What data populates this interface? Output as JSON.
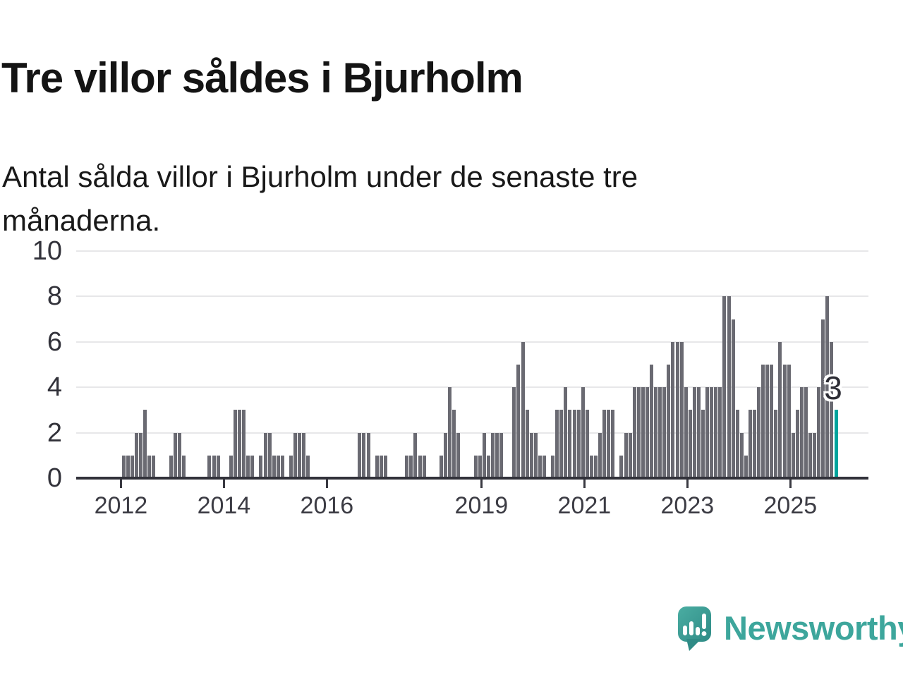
{
  "title": "Tre villor såldes i Bjurholm",
  "subtitle": "Antal sålda villor i Bjurholm under de senaste tre månaderna.",
  "annotation": {
    "label": "3"
  },
  "logo": {
    "text": "Newsworthy"
  },
  "colors": {
    "bar": "#6a6a72",
    "highlight": "#00a49c",
    "axis": "#32323a",
    "grid": "#e7e7e9",
    "logo": "#3da69c"
  },
  "chart_data": {
    "type": "bar",
    "title": "Tre villor såldes i Bjurholm",
    "subtitle": "Antal sålda villor i Bjurholm under de senaste tre månaderna.",
    "xlabel": "",
    "ylabel": "",
    "unit": "sålda villor per 3 månader",
    "start_month": "2012-01",
    "end_month": "2025-11",
    "x_tick_labels": [
      "2012",
      "2014",
      "2016",
      "2019",
      "2021",
      "2023",
      "2025"
    ],
    "yticks": [
      0,
      2,
      4,
      6,
      8,
      10
    ],
    "ylim": [
      0,
      10
    ],
    "grid": true,
    "legend": false,
    "highlight_last_value": 3,
    "values": [
      1,
      1,
      1,
      2,
      2,
      3,
      1,
      1,
      0,
      0,
      0,
      1,
      2,
      2,
      1,
      0,
      0,
      0,
      0,
      0,
      1,
      1,
      1,
      0,
      0,
      1,
      3,
      3,
      3,
      1,
      1,
      0,
      1,
      2,
      2,
      1,
      1,
      1,
      0,
      1,
      2,
      2,
      2,
      1,
      0,
      0,
      0,
      0,
      0,
      0,
      0,
      0,
      0,
      0,
      0,
      2,
      2,
      2,
      0,
      1,
      1,
      1,
      0,
      0,
      0,
      0,
      1,
      1,
      2,
      1,
      1,
      0,
      0,
      0,
      1,
      2,
      4,
      3,
      2,
      0,
      0,
      0,
      1,
      1,
      2,
      1,
      2,
      2,
      2,
      0,
      0,
      4,
      5,
      6,
      3,
      2,
      2,
      1,
      1,
      0,
      1,
      3,
      3,
      4,
      3,
      3,
      3,
      4,
      3,
      1,
      1,
      2,
      3,
      3,
      3,
      0,
      1,
      2,
      2,
      4,
      4,
      4,
      4,
      5,
      4,
      4,
      4,
      5,
      6,
      6,
      6,
      4,
      3,
      4,
      4,
      3,
      4,
      4,
      4,
      4,
      8,
      8,
      7,
      3,
      2,
      1,
      3,
      3,
      4,
      5,
      5,
      5,
      3,
      6,
      5,
      5,
      2,
      3,
      4,
      4,
      2,
      2,
      4,
      7,
      8,
      6,
      3
    ]
  }
}
